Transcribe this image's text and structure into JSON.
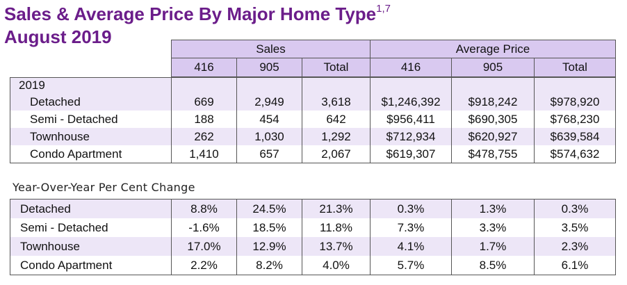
{
  "title": {
    "line1": "Sales & Average Price By Major Home Type",
    "superscript": "1,7",
    "line2": "August 2019"
  },
  "header": {
    "groups": [
      "Sales",
      "Average Price"
    ],
    "columns": [
      "416",
      "905",
      "Total",
      "416",
      "905",
      "Total"
    ]
  },
  "main_table": {
    "year_label": "2019",
    "rows": [
      {
        "label": "Detached",
        "values": [
          "669",
          "2,949",
          "3,618",
          "$1,246,392",
          "$918,242",
          "$978,920"
        ]
      },
      {
        "label": "Semi - Detached",
        "values": [
          "188",
          "454",
          "642",
          "$956,411",
          "$690,305",
          "$768,230"
        ]
      },
      {
        "label": "Townhouse",
        "values": [
          "262",
          "1,030",
          "1,292",
          "$712,934",
          "$620,927",
          "$639,584"
        ]
      },
      {
        "label": "Condo Apartment",
        "values": [
          "1,410",
          "657",
          "2,067",
          "$619,307",
          "$478,755",
          "$574,632"
        ]
      }
    ]
  },
  "yoy_table": {
    "heading": "Year-Over-Year Per Cent Change",
    "rows": [
      {
        "label": "Detached",
        "values": [
          "8.8%",
          "24.5%",
          "21.3%",
          "0.3%",
          "1.3%",
          "0.3%"
        ]
      },
      {
        "label": "Semi - Detached",
        "values": [
          "-1.6%",
          "18.5%",
          "11.8%",
          "7.3%",
          "3.3%",
          "3.5%"
        ]
      },
      {
        "label": "Townhouse",
        "values": [
          "17.0%",
          "12.9%",
          "13.7%",
          "4.1%",
          "1.7%",
          "2.3%"
        ]
      },
      {
        "label": "Condo Apartment",
        "values": [
          "2.2%",
          "8.2%",
          "4.0%",
          "5.7%",
          "8.5%",
          "6.1%"
        ]
      }
    ]
  },
  "colors": {
    "title": "#6b1d8a",
    "header_fill": "#d9c9f0",
    "row_shade": "#ede6f7"
  }
}
